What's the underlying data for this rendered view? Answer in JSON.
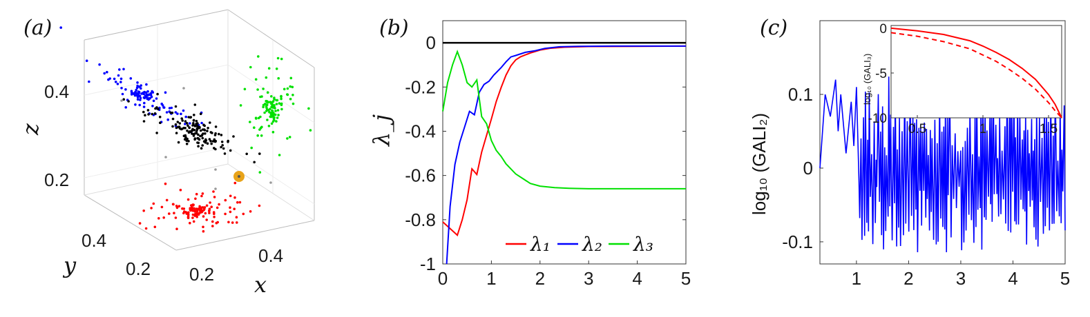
{
  "panel_labels": {
    "a": "(a)",
    "b": "(b)",
    "c": "(c)"
  },
  "chart_data": [
    {
      "type": "scatter",
      "panel": "a",
      "projection": "3d",
      "xlabel": "x",
      "ylabel": "y",
      "zlabel": "z",
      "xticks": [
        "0.2",
        "0.4"
      ],
      "yticks": [
        "0.2",
        "0.4"
      ],
      "zticks": [
        "0.2",
        "0.4"
      ],
      "series": [
        {
          "name": "",
          "color": "#0000ff",
          "role": "projection on x-z",
          "center": [
            0.15,
            0.52,
            0.38
          ],
          "count": 120
        },
        {
          "name": "",
          "color": "#000000",
          "role": "trajectory points",
          "center": [
            0.3,
            0.3,
            0.32
          ],
          "count": 150
        },
        {
          "name": "",
          "color": "#00e000",
          "role": "projection on y-z",
          "center": [
            0.45,
            0.15,
            0.36
          ],
          "count": 120
        },
        {
          "name": "",
          "color": "#ff0000",
          "role": "projection on x-y",
          "center": [
            0.22,
            0.25,
            0.1
          ],
          "count": 130
        }
      ],
      "marker": {
        "color": "#e8a31a",
        "label": ""
      },
      "grid": true
    },
    {
      "type": "line",
      "panel": "b",
      "ylabel": "λ_j",
      "xlabel": "",
      "xlim": [
        0,
        5
      ],
      "ylim": [
        -1,
        0.1
      ],
      "xticks": [
        "0",
        "1",
        "2",
        "3",
        "4",
        "5"
      ],
      "yticks": [
        "0",
        "-0.2",
        "-0.4",
        "-0.6",
        "-0.8",
        "-1"
      ],
      "reference_line": {
        "y": 0,
        "color": "#000000"
      },
      "series": [
        {
          "name": "λ₁",
          "color": "#ff0000",
          "x": [
            0,
            0.1,
            0.2,
            0.3,
            0.4,
            0.5,
            0.6,
            0.7,
            0.8,
            0.9,
            1.0,
            1.1,
            1.2,
            1.3,
            1.4,
            1.5,
            1.6,
            1.8,
            2.0,
            2.2,
            2.5,
            3.0,
            4.0,
            5.0
          ],
          "values": [
            -0.81,
            -0.83,
            -0.85,
            -0.87,
            -0.8,
            -0.71,
            -0.57,
            -0.6,
            -0.5,
            -0.42,
            -0.34,
            -0.26,
            -0.2,
            -0.15,
            -0.11,
            -0.08,
            -0.06,
            -0.04,
            -0.03,
            -0.025,
            -0.02,
            -0.017,
            -0.016,
            -0.015
          ]
        },
        {
          "name": "λ₂",
          "color": "#0000ff",
          "x": [
            0.08,
            0.15,
            0.25,
            0.35,
            0.45,
            0.55,
            0.65,
            0.75,
            0.85,
            0.95,
            1.05,
            1.2,
            1.3,
            1.4,
            1.5,
            1.7,
            1.9,
            2.1,
            2.4,
            2.8,
            3.5,
            5.0
          ],
          "values": [
            -1.0,
            -0.74,
            -0.55,
            -0.45,
            -0.38,
            -0.31,
            -0.33,
            -0.23,
            -0.19,
            -0.17,
            -0.14,
            -0.11,
            -0.09,
            -0.07,
            -0.06,
            -0.04,
            -0.03,
            -0.022,
            -0.018,
            -0.016,
            -0.015,
            -0.015
          ]
        },
        {
          "name": "λ₃",
          "color": "#00e000",
          "x": [
            0,
            0.1,
            0.2,
            0.3,
            0.4,
            0.5,
            0.6,
            0.7,
            0.8,
            0.9,
            1.0,
            1.1,
            1.2,
            1.3,
            1.5,
            1.8,
            2.0,
            2.3,
            2.6,
            3.0,
            4.0,
            5.0
          ],
          "values": [
            -0.31,
            -0.18,
            -0.1,
            -0.04,
            -0.1,
            -0.18,
            -0.2,
            -0.17,
            -0.33,
            -0.36,
            -0.44,
            -0.49,
            -0.52,
            -0.55,
            -0.59,
            -0.63,
            -0.645,
            -0.655,
            -0.658,
            -0.66,
            -0.66,
            -0.66
          ]
        }
      ],
      "legend_position": "bottom-right"
    },
    {
      "type": "line",
      "panel": "c",
      "ylabel": "log₁₀ (GALI₂)",
      "xlabel": "",
      "xlim": [
        0.3,
        5
      ],
      "ylim": [
        -0.13,
        0.2
      ],
      "xticks": [
        "1",
        "2",
        "3",
        "4",
        "5"
      ],
      "yticks": [
        "0.1",
        "0",
        "-0.1"
      ],
      "series": [
        {
          "name": "",
          "color": "#0000ff",
          "oscillating_between": [
            -0.115,
            0.125
          ]
        }
      ],
      "inset": {
        "type": "line",
        "ylabel": "log₁₀ (GALI₃)",
        "xlim": [
          0.3,
          1.6
        ],
        "ylim": [
          -10,
          0.3
        ],
        "xticks": [
          "0.5",
          "1",
          "1.5"
        ],
        "yticks": [
          "0",
          "-5",
          "-10"
        ],
        "series": [
          {
            "name": "",
            "color": "#ff0000",
            "style": "solid",
            "x": [
              0.3,
              0.5,
              0.7,
              0.9,
              1.0,
              1.1,
              1.2,
              1.3,
              1.4,
              1.5,
              1.55,
              1.6
            ],
            "values": [
              0,
              -0.3,
              -0.7,
              -1.4,
              -2.0,
              -2.7,
              -3.5,
              -4.5,
              -5.7,
              -7.4,
              -8.5,
              -10
            ]
          },
          {
            "name": "",
            "color": "#ff0000",
            "style": "dashed",
            "x": [
              0.3,
              0.5,
              0.7,
              0.9,
              1.0,
              1.1,
              1.2,
              1.3,
              1.4,
              1.5,
              1.55,
              1.6
            ],
            "values": [
              -0.5,
              -0.9,
              -1.5,
              -2.3,
              -3.0,
              -3.7,
              -4.6,
              -5.6,
              -6.8,
              -8.3,
              -9.2,
              -10
            ]
          }
        ]
      }
    }
  ]
}
